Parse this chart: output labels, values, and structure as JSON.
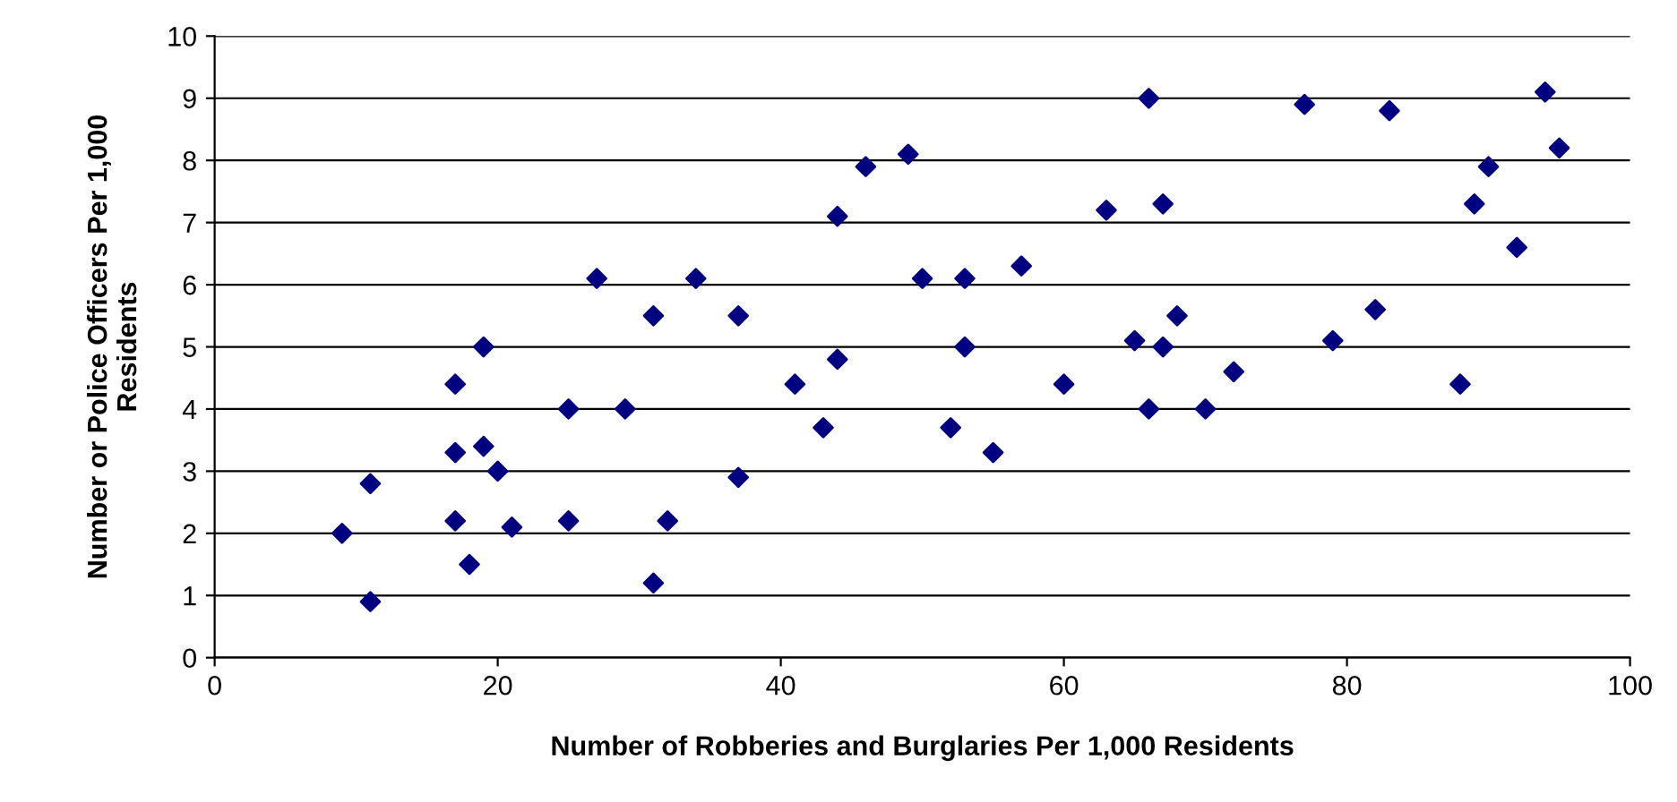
{
  "chart_data": {
    "type": "scatter",
    "xlabel": "Number of Robberies and Burglaries Per 1,000 Residents",
    "ylabel": "Number or Police Officers Per 1,000\nResidents",
    "x": [
      9,
      11,
      11,
      17,
      17,
      17,
      18,
      19,
      19,
      20,
      21,
      25,
      25,
      27,
      29,
      31,
      31,
      32,
      34,
      37,
      37,
      41,
      43,
      44,
      44,
      46,
      49,
      50,
      52,
      53,
      53,
      55,
      57,
      60,
      63,
      65,
      66,
      66,
      67,
      67,
      68,
      70,
      72,
      77,
      79,
      82,
      83,
      88,
      89,
      90,
      92,
      94,
      95
    ],
    "series": [
      {
        "color": "#000080",
        "values": [
          2.0,
          2.8,
          0.9,
          4.4,
          3.3,
          2.2,
          1.5,
          5.0,
          3.4,
          3.0,
          2.1,
          4.0,
          2.2,
          6.1,
          4.0,
          5.5,
          1.2,
          2.2,
          6.1,
          5.5,
          2.9,
          4.4,
          3.7,
          7.1,
          4.8,
          7.9,
          8.1,
          6.1,
          3.7,
          6.1,
          5.0,
          3.3,
          6.3,
          4.4,
          7.2,
          5.1,
          9.0,
          4.0,
          7.3,
          5.0,
          5.5,
          4.0,
          4.6,
          8.9,
          5.1,
          5.6,
          8.8,
          4.4,
          7.3,
          7.9,
          6.6,
          9.1,
          8.2
        ]
      }
    ],
    "xlim": [
      0,
      100
    ],
    "xticks": [
      0,
      20,
      40,
      60,
      80,
      100
    ],
    "ylim": [
      0,
      10
    ],
    "yticks": [
      0,
      1,
      2,
      3,
      4,
      5,
      6,
      7,
      8,
      9,
      10
    ],
    "grid": "y",
    "marker": "diamond",
    "legend": false
  }
}
